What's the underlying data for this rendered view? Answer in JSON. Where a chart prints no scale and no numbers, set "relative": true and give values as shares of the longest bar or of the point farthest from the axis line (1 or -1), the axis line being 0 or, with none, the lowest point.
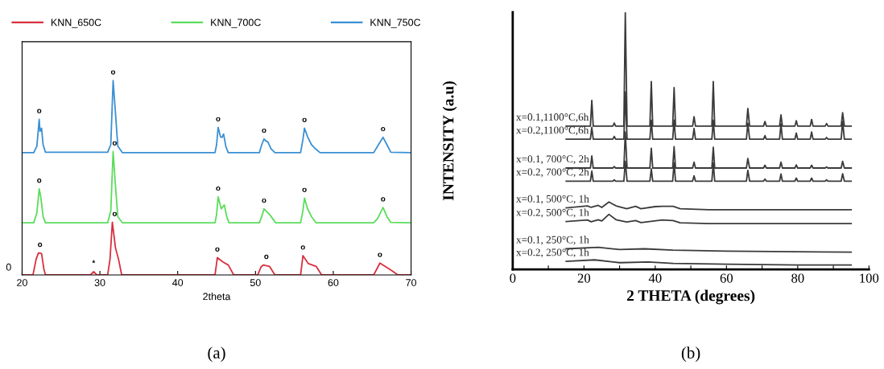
{
  "chart_data": [
    {
      "type": "line",
      "relative": true,
      "xlabel": "2theta",
      "xlim": [
        20,
        70
      ],
      "xticks": [
        20,
        30,
        40,
        50,
        60,
        70
      ],
      "legend": "top",
      "grid": false,
      "series": [
        {
          "name": "KNN_650C",
          "color": "#d8303f",
          "x": [
            20,
            21.4,
            21.8,
            22.1,
            22.5,
            22.8,
            23.0,
            28.8,
            29.2,
            29.6,
            31.0,
            31.3,
            31.6,
            32.0,
            32.4,
            32.8,
            44.8,
            45.1,
            45.8,
            46.5,
            47.2,
            50.3,
            50.7,
            51.0,
            51.8,
            52.5,
            55.8,
            56.1,
            56.8,
            57.8,
            58.5,
            65.2,
            66.0,
            67.5,
            68.3,
            70
          ],
          "values": [
            0,
            0,
            0.08,
            0.113,
            0.11,
            0.03,
            0,
            0,
            0.017,
            0,
            0,
            0.08,
            0.271,
            0.14,
            0.08,
            0,
            0,
            0.089,
            0.067,
            0.051,
            0,
            0,
            0.04,
            0.051,
            0.044,
            0,
            0,
            0.099,
            0.058,
            0.044,
            0,
            0,
            0.061,
            0.023,
            0,
            0
          ]
        },
        {
          "name": "KNN_700C",
          "color": "#5cdc5c",
          "x": [
            20,
            21.5,
            21.9,
            22.2,
            22.4,
            22.7,
            23.0,
            31.0,
            31.4,
            31.7,
            32.0,
            32.3,
            32.9,
            44.8,
            45.0,
            45.2,
            45.6,
            46.0,
            46.3,
            46.6,
            50.5,
            50.8,
            51.1,
            51.8,
            52.2,
            52.6,
            55.8,
            56.1,
            56.3,
            56.7,
            57.2,
            57.8,
            65.2,
            65.7,
            66.4,
            66.9,
            67.4,
            70
          ],
          "values": [
            0.268,
            0.268,
            0.32,
            0.443,
            0.402,
            0.3,
            0.268,
            0.268,
            0.33,
            0.635,
            0.46,
            0.3,
            0.268,
            0.268,
            0.31,
            0.402,
            0.34,
            0.36,
            0.3,
            0.268,
            0.268,
            0.3,
            0.34,
            0.312,
            0.29,
            0.268,
            0.268,
            0.33,
            0.395,
            0.34,
            0.3,
            0.268,
            0.268,
            0.29,
            0.347,
            0.3,
            0.27,
            0.268
          ]
        },
        {
          "name": "KNN_750C",
          "color": "#3b90d2",
          "x": [
            20,
            21.5,
            21.9,
            22.2,
            22.3,
            22.5,
            22.7,
            23.0,
            31.0,
            31.4,
            31.7,
            32.0,
            32.3,
            32.9,
            44.8,
            45.0,
            45.2,
            45.5,
            45.7,
            45.9,
            46.2,
            46.5,
            50.5,
            50.8,
            51.1,
            51.3,
            51.6,
            52.0,
            52.5,
            55.8,
            56.1,
            56.3,
            56.7,
            57.2,
            57.7,
            58.3,
            65.2,
            65.7,
            66.4,
            66.9,
            67.4,
            70
          ],
          "values": [
            0.629,
            0.629,
            0.663,
            0.801,
            0.739,
            0.755,
            0.67,
            0.631,
            0.631,
            0.67,
            1.0,
            0.835,
            0.663,
            0.629,
            0.629,
            0.67,
            0.759,
            0.711,
            0.708,
            0.725,
            0.659,
            0.629,
            0.629,
            0.67,
            0.7,
            0.69,
            0.684,
            0.649,
            0.629,
            0.629,
            0.697,
            0.755,
            0.711,
            0.67,
            0.649,
            0.629,
            0.629,
            0.663,
            0.708,
            0.67,
            0.631,
            0.629
          ]
        }
      ],
      "annotations": [
        {
          "text": "0",
          "x": 20,
          "y": 0
        },
        {
          "text": "o",
          "x": 22.2,
          "y": 0.801
        },
        {
          "text": "o",
          "x": 31.7,
          "y": 1.0
        },
        {
          "text": "o",
          "x": 45.2,
          "y": 0.759
        },
        {
          "text": "o",
          "x": 51.1,
          "y": 0.7
        },
        {
          "text": "o",
          "x": 56.3,
          "y": 0.755
        },
        {
          "text": "o",
          "x": 66.4,
          "y": 0.708
        },
        {
          "text": "o",
          "x": 22.2,
          "y": 0.443
        },
        {
          "text": "o",
          "x": 31.9,
          "y": 0.635
        },
        {
          "text": "o",
          "x": 45.2,
          "y": 0.402
        },
        {
          "text": "o",
          "x": 51.1,
          "y": 0.34
        },
        {
          "text": "o",
          "x": 56.3,
          "y": 0.395
        },
        {
          "text": "o",
          "x": 66.4,
          "y": 0.347
        },
        {
          "text": "o",
          "x": 22.3,
          "y": 0.113
        },
        {
          "text": "*",
          "x": 29.2,
          "y": 0.017
        },
        {
          "text": "o",
          "x": 31.9,
          "y": 0.271
        },
        {
          "text": "o",
          "x": 45.1,
          "y": 0.089
        },
        {
          "text": "o",
          "x": 51.4,
          "y": 0.051
        },
        {
          "text": "o",
          "x": 56.1,
          "y": 0.099
        },
        {
          "text": "o",
          "x": 66.0,
          "y": 0.061
        },
        "(a)"
      ]
    },
    {
      "type": "line",
      "relative": true,
      "xlabel": "2 THETA (degrees)",
      "ylabel": "INTENSITY (a.u)",
      "xlim": [
        0,
        100
      ],
      "xticks": [
        0,
        {
          "value": 10,
          "label": null
        },
        20,
        {
          "value": 30,
          "label": null
        },
        40,
        {
          "value": 50,
          "label": null
        },
        60,
        {
          "value": 70,
          "label": null
        },
        80,
        {
          "value": 90,
          "label": null
        },
        100
      ],
      "legend": false,
      "grid": false,
      "x": [
        15,
        21.8,
        22.2,
        22.6,
        28.1,
        28.5,
        28.9,
        31.2,
        31.6,
        32.1,
        38.5,
        38.9,
        39.3,
        44.9,
        45.3,
        45.7,
        50.5,
        50.9,
        51.3,
        55.9,
        56.3,
        56.7,
        65.6,
        66.0,
        66.5,
        70.4,
        70.8,
        71.2,
        74.9,
        75.3,
        75.7,
        79.2,
        79.6,
        80.0,
        83.5,
        83.9,
        84.3,
        87.7,
        88.1,
        88.5,
        92.2,
        92.6,
        93.1,
        95
      ],
      "series": [
        {
          "name": "x=0.1,1100°C,6h",
          "color": "#3a3a3a",
          "values": [
            0.557,
            0.557,
            0.657,
            0.557,
            0.557,
            0.569,
            0.557,
            0.557,
            1.0,
            0.557,
            0.557,
            0.73,
            0.557,
            0.557,
            0.707,
            0.557,
            0.557,
            0.594,
            0.557,
            0.557,
            0.73,
            0.557,
            0.557,
            0.626,
            0.557,
            0.557,
            0.575,
            0.557,
            0.557,
            0.601,
            0.557,
            0.557,
            0.578,
            0.557,
            0.557,
            0.583,
            0.557,
            0.557,
            0.567,
            0.557,
            0.557,
            0.609,
            0.557,
            0.557
          ]
        },
        {
          "name": "x=0.2,1100°C,6h",
          "color": "#3a3a3a",
          "values": [
            0.506,
            0.506,
            0.552,
            0.506,
            0.506,
            0.517,
            0.506,
            0.506,
            0.69,
            0.506,
            0.506,
            0.58,
            0.506,
            0.506,
            0.58,
            0.506,
            0.506,
            0.548,
            0.506,
            0.506,
            0.58,
            0.506,
            0.506,
            0.569,
            0.506,
            0.506,
            0.52,
            0.506,
            0.506,
            0.566,
            0.506,
            0.506,
            0.53,
            0.506,
            0.506,
            0.534,
            0.506,
            0.506,
            0.513,
            0.506,
            0.506,
            0.575,
            0.506,
            0.506
          ]
        },
        {
          "name": "x=0.1, 700°C, 2h",
          "color": "#3a3a3a",
          "values": [
            0.394,
            0.394,
            0.441,
            0.394,
            0.394,
            0.4,
            0.394,
            0.394,
            0.534,
            0.394,
            0.394,
            0.471,
            0.394,
            0.394,
            0.477,
            0.394,
            0.394,
            0.417,
            0.394,
            0.394,
            0.475,
            0.394,
            0.394,
            0.431,
            0.394,
            0.394,
            0.405,
            0.394,
            0.394,
            0.417,
            0.394,
            0.394,
            0.406,
            0.394,
            0.394,
            0.405,
            0.394,
            0.394,
            0.398,
            0.394,
            0.394,
            0.42,
            0.394,
            0.394
          ]
        },
        {
          "name": "x=0.2, 700°C, 2h",
          "color": "#3a3a3a",
          "values": [
            0.343,
            0.343,
            0.382,
            0.343,
            0.343,
            0.348,
            0.343,
            0.343,
            0.42,
            0.343,
            0.343,
            0.391,
            0.343,
            0.343,
            0.414,
            0.343,
            0.343,
            0.364,
            0.343,
            0.343,
            0.414,
            0.343,
            0.343,
            0.385,
            0.343,
            0.343,
            0.351,
            0.343,
            0.343,
            0.371,
            0.343,
            0.343,
            0.355,
            0.343,
            0.343,
            0.355,
            0.343,
            0.343,
            0.348,
            0.343,
            0.343,
            0.372,
            0.343,
            0.343
          ]
        },
        {
          "name": "x=0.1, 500°C, 1h",
          "color": "#3a3a3a",
          "x": [
            15,
            21,
            22,
            24,
            25,
            27,
            29,
            32,
            34.5,
            36,
            40,
            42,
            45,
            47,
            55,
            95
          ],
          "values": [
            0.239,
            0.247,
            0.241,
            0.249,
            0.241,
            0.262,
            0.247,
            0.236,
            0.245,
            0.236,
            0.244,
            0.245,
            0.245,
            0.236,
            0.232,
            0.232
          ]
        },
        {
          "name": "x=0.2, 500°C, 1h",
          "color": "#3a3a3a",
          "x": [
            15,
            21,
            22,
            24,
            25,
            27,
            29,
            32,
            34.5,
            36,
            42,
            45,
            47,
            55,
            95
          ],
          "values": [
            0.186,
            0.192,
            0.185,
            0.193,
            0.188,
            0.214,
            0.193,
            0.184,
            0.19,
            0.182,
            0.192,
            0.19,
            0.181,
            0.178,
            0.178
          ]
        },
        {
          "name": "x=0.1, 250°C, 1h",
          "color": "#3a3a3a",
          "x": [
            15,
            24,
            30,
            37,
            45,
            60,
            95
          ],
          "values": [
            0.08,
            0.086,
            0.077,
            0.08,
            0.075,
            0.071,
            0.067
          ]
        },
        {
          "name": "x=0.2, 250°C, 1h",
          "color": "#3a3a3a",
          "x": [
            15,
            23,
            30,
            38,
            45,
            60,
            80,
            95
          ],
          "values": [
            0.031,
            0.037,
            0.026,
            0.029,
            0.023,
            0.02,
            0.017,
            0.017
          ]
        }
      ],
      "annotations": [
        "(b)"
      ]
    }
  ]
}
